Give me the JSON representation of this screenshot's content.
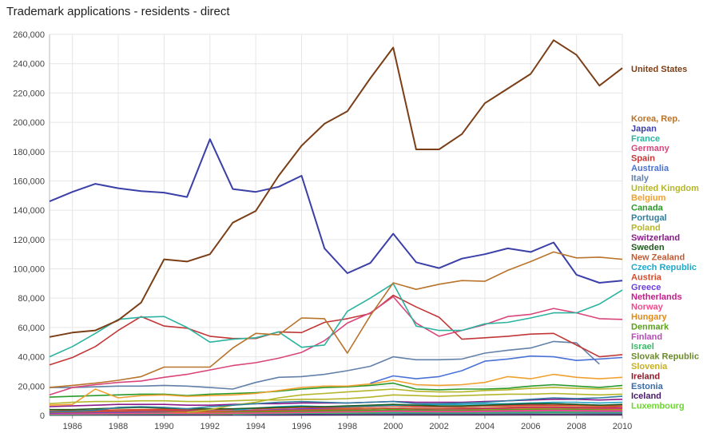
{
  "chart_data": {
    "type": "line",
    "title": "Trademark applications - residents - direct",
    "xlabel": "",
    "ylabel": "",
    "x": [
      1985,
      1986,
      1987,
      1988,
      1989,
      1990,
      1991,
      1992,
      1993,
      1994,
      1995,
      1996,
      1997,
      1998,
      1999,
      2000,
      2001,
      2002,
      2003,
      2004,
      2005,
      2006,
      2007,
      2008,
      2009,
      2010
    ],
    "xticks": [
      "1986",
      "1988",
      "1990",
      "1992",
      "1994",
      "1996",
      "1998",
      "2000",
      "2002",
      "2004",
      "2006",
      "2008",
      "2010"
    ],
    "yticks": [
      "0",
      "20,000",
      "40,000",
      "60,000",
      "80,000",
      "100,000",
      "120,000",
      "140,000",
      "160,000",
      "180,000",
      "200,000",
      "220,000",
      "240,000",
      "260,000"
    ],
    "ylim": [
      0,
      260000
    ],
    "grid": true,
    "legend_position": "right",
    "series": [
      {
        "name": "United States",
        "color": "#7b3f17",
        "values": [
          53500,
          56500,
          58000,
          65000,
          77000,
          106500,
          105000,
          110000,
          131500,
          139500,
          163500,
          184000,
          199000,
          207500,
          230000,
          251000,
          181500,
          181500,
          192000,
          213000,
          223000,
          233000,
          256000,
          246000,
          225000,
          237000
        ]
      },
      {
        "name": "Korea, Rep.",
        "color": "#b8742b",
        "values": [
          19000,
          20500,
          22000,
          24000,
          26500,
          33000,
          33000,
          33000,
          46000,
          56000,
          55000,
          66500,
          66000,
          42500,
          68000,
          90500,
          86000,
          89500,
          92000,
          91500,
          99000,
          105000,
          111500,
          107500,
          108000,
          106500
        ]
      },
      {
        "name": "Japan",
        "color": "#3b3fa8",
        "values": [
          146000,
          152500,
          158000,
          155000,
          153000,
          152000,
          149000,
          188500,
          154500,
          152500,
          156000,
          163500,
          114000,
          97000,
          104000,
          124000,
          104500,
          100500,
          107000,
          110000,
          114000,
          111500,
          118000,
          96000,
          90500,
          92000
        ]
      },
      {
        "name": "France",
        "color": "#2bb3a0",
        "values": [
          40000,
          47000,
          56000,
          65500,
          67000,
          67500,
          60000,
          50000,
          52000,
          53000,
          57000,
          46500,
          48000,
          71000,
          80000,
          90000,
          61000,
          58000,
          58000,
          62500,
          63500,
          66500,
          70000,
          70000,
          76000,
          85500
        ]
      },
      {
        "name": "Germany",
        "color": "#d9457a",
        "values": [
          14000,
          19000,
          21000,
          22500,
          23500,
          26000,
          28000,
          31000,
          34000,
          36000,
          39000,
          43000,
          51000,
          63000,
          70000,
          81000,
          63000,
          54000,
          58000,
          62000,
          67500,
          69000,
          73000,
          70000,
          66000,
          65500
        ]
      },
      {
        "name": "Spain",
        "color": "#c13737",
        "values": [
          34500,
          39500,
          47000,
          58000,
          67500,
          61000,
          59500,
          54000,
          52500,
          52500,
          57000,
          56500,
          63500,
          66000,
          69500,
          82000,
          74000,
          67000,
          52000,
          53000,
          54000,
          55500,
          56000,
          48000,
          40000,
          41500
        ]
      },
      {
        "name": "Australia",
        "color": "#4a72d6",
        "values": [
          null,
          null,
          null,
          null,
          null,
          null,
          null,
          null,
          null,
          null,
          null,
          null,
          null,
          null,
          22000,
          27000,
          25000,
          26500,
          30500,
          37000,
          38500,
          40500,
          40000,
          37500,
          38500,
          39500
        ]
      },
      {
        "name": "Italy",
        "color": "#6280a8",
        "values": [
          19000,
          19000,
          19500,
          20000,
          20000,
          20500,
          20000,
          19000,
          18000,
          22500,
          26000,
          26500,
          28000,
          30500,
          33500,
          40000,
          38000,
          38000,
          38500,
          42500,
          44500,
          46000,
          50500,
          49500,
          35000,
          null
        ]
      },
      {
        "name": "United Kingdom",
        "color": "#b5b52a",
        "values": [
          8000,
          9000,
          9500,
          9500,
          10000,
          10000,
          9500,
          9500,
          10000,
          10500,
          10500,
          11000,
          11000,
          11500,
          12500,
          14000,
          13500,
          13000,
          13500,
          14000,
          14500,
          14500,
          15000,
          14500,
          14000,
          14500
        ]
      },
      {
        "name": "Belgium",
        "color": "#f0a030",
        "values": [
          7000,
          7500,
          18000,
          12000,
          13500,
          14000,
          13000,
          13500,
          14000,
          15000,
          17000,
          19000,
          20000,
          20000,
          21500,
          24000,
          21000,
          20500,
          21000,
          22500,
          26500,
          25000,
          28000,
          26000,
          25000,
          26000
        ]
      },
      {
        "name": "Canada",
        "color": "#2a9a2a",
        "values": [
          12500,
          13000,
          13500,
          14000,
          14500,
          14500,
          13500,
          14500,
          15000,
          15500,
          16500,
          18000,
          19000,
          19500,
          20500,
          22000,
          18000,
          17500,
          18000,
          18000,
          18500,
          20000,
          21000,
          20000,
          19000,
          20500
        ]
      },
      {
        "name": "Portugal",
        "color": "#2f7fa0",
        "values": [
          2500,
          2800,
          3500,
          5500,
          6000,
          5500,
          4500,
          6000,
          7000,
          8000,
          9000,
          9500,
          9000,
          8500,
          9000,
          9500,
          8000,
          8000,
          8500,
          9000,
          10000,
          11000,
          12000,
          11500,
          12000,
          13000
        ]
      },
      {
        "name": "Poland",
        "color": "#b5b52a",
        "values": [
          null,
          null,
          null,
          null,
          null,
          null,
          2000,
          4000,
          7000,
          9000,
          12000,
          14000,
          15000,
          16000,
          17000,
          18000,
          16500,
          16000,
          16000,
          17000,
          17500,
          18500,
          19000,
          18500,
          18000,
          18500
        ]
      },
      {
        "name": "Switzerland",
        "color": "#8b1a8b",
        "values": [
          6000,
          6500,
          7000,
          7500,
          7500,
          7500,
          7000,
          7000,
          7500,
          8000,
          8000,
          8500,
          8500,
          8500,
          9000,
          9500,
          9000,
          9000,
          9000,
          9500,
          10000,
          10500,
          11000,
          11000,
          10500,
          11000
        ]
      },
      {
        "name": "Sweden",
        "color": "#1f5a1f",
        "values": [
          4000,
          4000,
          4500,
          5000,
          5500,
          5000,
          4500,
          4500,
          4500,
          5000,
          5500,
          6000,
          6000,
          6500,
          7000,
          7500,
          7000,
          6500,
          6500,
          7000,
          7500,
          8000,
          8000,
          7500,
          7000,
          7500
        ]
      },
      {
        "name": "New Zealand",
        "color": "#c45a32",
        "values": [
          2000,
          2200,
          2500,
          2800,
          3000,
          3000,
          2800,
          2800,
          3000,
          3200,
          3500,
          3800,
          4000,
          4200,
          4500,
          5000,
          4800,
          4800,
          5000,
          5200,
          5500,
          6000,
          6000,
          5800,
          5600,
          6000
        ]
      },
      {
        "name": "Czech Republic",
        "color": "#20a8c8",
        "values": [
          null,
          null,
          null,
          null,
          null,
          null,
          null,
          null,
          3500,
          5000,
          6000,
          6500,
          6000,
          6000,
          6500,
          7000,
          7000,
          7500,
          7500,
          8000,
          8000,
          8500,
          9000,
          9000,
          8500,
          9000
        ]
      },
      {
        "name": "Austria",
        "color": "#d84a2a",
        "values": [
          3000,
          3200,
          3500,
          3800,
          4000,
          4200,
          4000,
          4000,
          4200,
          4500,
          5000,
          5500,
          5500,
          5500,
          6000,
          6500,
          6000,
          6000,
          6000,
          6500,
          6500,
          7000,
          7000,
          6800,
          6500,
          6500
        ]
      },
      {
        "name": "Greece",
        "color": "#6a3fd8",
        "values": [
          1500,
          1800,
          2000,
          2200,
          2500,
          2800,
          3000,
          3000,
          3200,
          3500,
          4000,
          4500,
          5000,
          5500,
          6000,
          6500,
          6000,
          6000,
          6000,
          6500,
          7000,
          7500,
          8000,
          7500,
          7000,
          6500
        ]
      },
      {
        "name": "Netherlands",
        "color": "#c81a8a",
        "values": [
          2500,
          2500,
          2800,
          3000,
          3200,
          3500,
          3200,
          3000,
          3000,
          3200,
          3500,
          3800,
          4000,
          4200,
          4500,
          5000,
          4500,
          4500,
          4500,
          4800,
          5000,
          5500,
          5500,
          5200,
          5000,
          5000
        ]
      },
      {
        "name": "Norway",
        "color": "#f04a8a",
        "values": [
          1000,
          1100,
          1200,
          1300,
          1400,
          1500,
          1400,
          1400,
          1500,
          1600,
          1800,
          2000,
          2200,
          2400,
          2600,
          3000,
          2800,
          2800,
          2800,
          3000,
          3200,
          3400,
          3600,
          3400,
          3200,
          3200
        ]
      },
      {
        "name": "Hungary",
        "color": "#e08a1a",
        "values": [
          null,
          null,
          null,
          null,
          null,
          1500,
          2000,
          2500,
          3000,
          3500,
          4000,
          4200,
          4400,
          4600,
          4800,
          5000,
          4600,
          4400,
          4400,
          4600,
          4800,
          5000,
          5200,
          5000,
          4600,
          4400
        ]
      },
      {
        "name": "Denmark",
        "color": "#5aa01a",
        "values": [
          1500,
          1600,
          1800,
          2000,
          2200,
          2400,
          2200,
          2200,
          2400,
          2600,
          2800,
          3000,
          3200,
          3400,
          3600,
          4000,
          3800,
          3600,
          3600,
          3800,
          4000,
          4200,
          4400,
          4200,
          4000,
          4000
        ]
      },
      {
        "name": "Finland",
        "color": "#b84ab8",
        "values": [
          1000,
          1100,
          1200,
          1400,
          1600,
          1800,
          1600,
          1500,
          1500,
          1600,
          1800,
          2000,
          2200,
          2400,
          2600,
          2800,
          2600,
          2500,
          2500,
          2600,
          2800,
          3000,
          3200,
          3000,
          2800,
          2800
        ]
      },
      {
        "name": "Israel",
        "color": "#3ab86a",
        "values": [
          500,
          600,
          700,
          800,
          900,
          1000,
          1000,
          1000,
          1100,
          1200,
          1300,
          1400,
          1500,
          1600,
          1800,
          2000,
          1900,
          1800,
          1800,
          1900,
          2000,
          2200,
          2300,
          2200,
          2100,
          2100
        ]
      },
      {
        "name": "Slovak Republic",
        "color": "#6a8a2a",
        "values": [
          null,
          null,
          null,
          null,
          null,
          null,
          null,
          null,
          1500,
          2000,
          2400,
          2600,
          2800,
          3000,
          3200,
          3400,
          3200,
          3200,
          3400,
          3600,
          3800,
          4000,
          4000,
          3800,
          3600,
          3600
        ]
      },
      {
        "name": "Slovenia",
        "color": "#c8b020",
        "values": [
          null,
          null,
          null,
          null,
          null,
          null,
          null,
          800,
          1000,
          1200,
          1400,
          1600,
          1800,
          2000,
          2200,
          2400,
          2200,
          2200,
          2200,
          2400,
          2500,
          2600,
          2700,
          2600,
          2500,
          2500
        ]
      },
      {
        "name": "Ireland",
        "color": "#8a1a2a",
        "values": [
          800,
          900,
          1000,
          1100,
          1200,
          1300,
          1300,
          1300,
          1400,
          1500,
          1600,
          1800,
          2000,
          2200,
          2400,
          2600,
          2400,
          2300,
          2300,
          2400,
          2500,
          2600,
          2700,
          2600,
          2400,
          2400
        ]
      },
      {
        "name": "Estonia",
        "color": "#3a6aa8",
        "values": [
          null,
          null,
          null,
          null,
          null,
          null,
          null,
          null,
          500,
          800,
          1000,
          1200,
          1300,
          1400,
          1500,
          1600,
          1500,
          1500,
          1500,
          1600,
          1600,
          1700,
          1800,
          1700,
          1600,
          1600
        ]
      },
      {
        "name": "Iceland",
        "color": "#4a1a6a",
        "values": [
          200,
          200,
          250,
          250,
          300,
          300,
          300,
          300,
          300,
          350,
          350,
          400,
          400,
          450,
          500,
          500,
          500,
          500,
          500,
          500,
          550,
          600,
          600,
          550,
          500,
          500
        ]
      },
      {
        "name": "Luxembourg",
        "color": "#6ad82a",
        "values": [
          300,
          300,
          350,
          350,
          400,
          400,
          400,
          400,
          400,
          450,
          450,
          500,
          500,
          550,
          600,
          600,
          600,
          600,
          600,
          650,
          700,
          700,
          750,
          700,
          650,
          650
        ]
      }
    ]
  }
}
